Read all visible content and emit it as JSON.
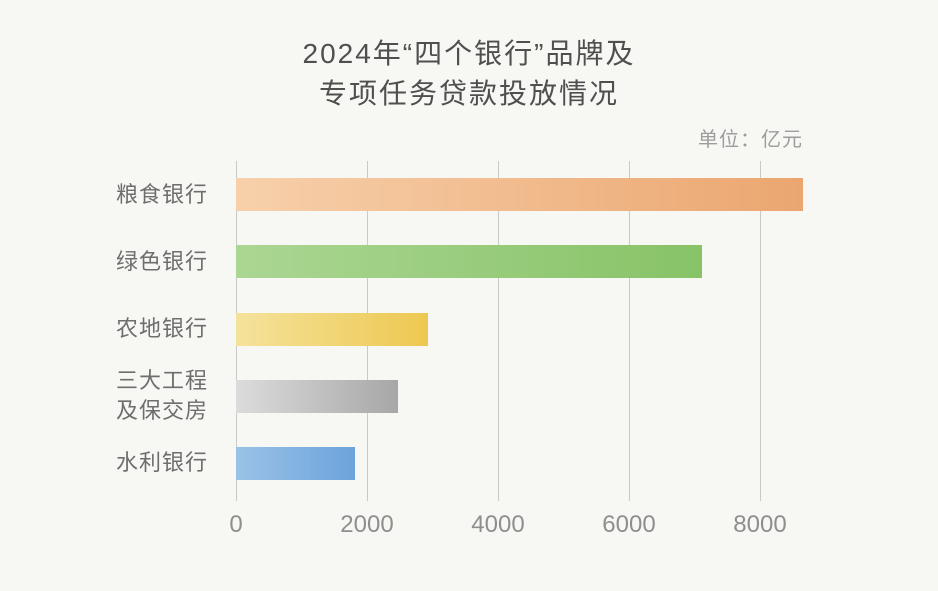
{
  "page": {
    "background_color": "#f7f7f4"
  },
  "chart_data": {
    "type": "bar",
    "orientation": "horizontal",
    "title": "2024年“四个银行”品牌及\n专项任务贷款投放情况",
    "unit_label": "单位：亿元",
    "categories": [
      "粮食银行",
      "绿色银行",
      "农地银行",
      "三大工程\n及保交房",
      "水利银行"
    ],
    "values": [
      8660,
      7120,
      2935,
      2475,
      1815
    ],
    "x_ticks": [
      0,
      2000,
      4000,
      6000,
      8000
    ],
    "x_tick_labels": [
      "0",
      "2000",
      "4000",
      "6000",
      "8000"
    ],
    "xlim": [
      0,
      9700
    ],
    "xlabel": "",
    "ylabel": "",
    "grid": true,
    "legend_position": "none",
    "gridline_color": "#c9c9c9",
    "title_color": "#4f4f4f",
    "label_color": "#6e6e6e",
    "tick_color": "#8e8e8e",
    "unit_color": "#9d9d9d",
    "bar_gradients": [
      {
        "from": "#f7d0ab",
        "to": "#eba670"
      },
      {
        "from": "#abd693",
        "to": "#87c367"
      },
      {
        "from": "#f5e29b",
        "to": "#edc851"
      },
      {
        "from": "#dcdcdc",
        "to": "#a7a7a7"
      },
      {
        "from": "#9bc2e7",
        "to": "#6ba4db"
      }
    ]
  }
}
